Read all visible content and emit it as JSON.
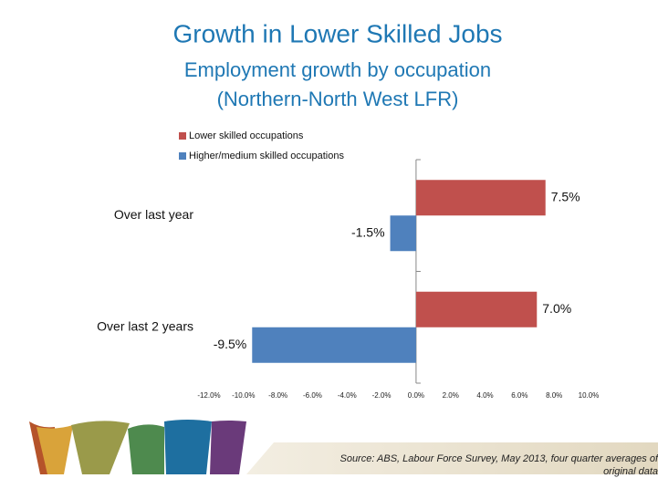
{
  "chart_data": {
    "type": "barh",
    "title": "Growth in Lower Skilled Jobs",
    "subtitle": [
      "Employment growth by occupation",
      "(Northern-North West LFR)"
    ],
    "categories": [
      "Over last year",
      "Over last 2 years"
    ],
    "series": [
      {
        "name": "Lower skilled occupations",
        "color": "#c0504d",
        "values": [
          7.5,
          7.0
        ],
        "value_labels": [
          "7.5%",
          "7.0%"
        ]
      },
      {
        "name": "Higher/medium skilled occupations",
        "color": "#4f81bd",
        "values": [
          -1.5,
          -9.5
        ],
        "value_labels": [
          "-1.5%",
          "-9.5%"
        ]
      }
    ],
    "xlim": [
      -12,
      10
    ],
    "xticks": [
      {
        "value": -12,
        "label": "-12.0%"
      },
      {
        "value": -10,
        "label": "-10.0%"
      },
      {
        "value": -8,
        "label": "-8.0%"
      },
      {
        "value": -6,
        "label": "-6.0%"
      },
      {
        "value": -4,
        "label": "-4.0%"
      },
      {
        "value": -2,
        "label": "-2.0%"
      },
      {
        "value": 0,
        "label": "0.0%"
      },
      {
        "value": 2,
        "label": "2.0%"
      },
      {
        "value": 4,
        "label": "4.0%"
      },
      {
        "value": 6,
        "label": "6.0%"
      },
      {
        "value": 8,
        "label": "8.0%"
      },
      {
        "value": 10,
        "label": "10.0%"
      }
    ],
    "grid": false,
    "legend": "top-left",
    "source": [
      "Source: ABS, Labour Force Survey, May 2013, four quarter averages of",
      "original data"
    ]
  }
}
